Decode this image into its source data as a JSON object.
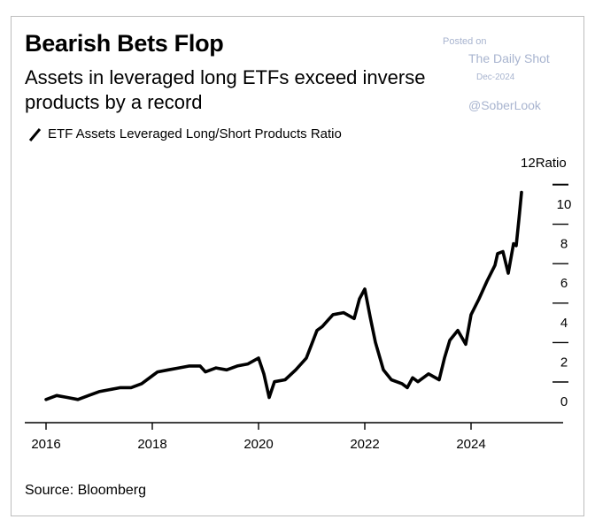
{
  "header": {
    "title": "Bearish Bets Flop",
    "subtitle": "Assets in leveraged long ETFs exceed inverse products by a record"
  },
  "watermark": {
    "line1": "Posted on",
    "line2": "The Daily Shot",
    "line3": "Dec-2024",
    "line4": "@SoberLook"
  },
  "footer": {
    "source": "Source: Bloomberg"
  },
  "colors": {
    "line": "#000000",
    "watermark": "#a8b4cf",
    "border": "#bdbdbd"
  },
  "chart_data": {
    "type": "line",
    "title": "Bearish Bets Flop",
    "legend": [
      "ETF Assets Leveraged Long/Short Products Ratio"
    ],
    "ylabel": "Ratio",
    "xlim": [
      2015.9,
      2025.6
    ],
    "ylim": [
      -1,
      12
    ],
    "x_ticks": [
      2016,
      2018,
      2020,
      2022,
      2024
    ],
    "y_ticks": [
      0,
      2,
      4,
      6,
      8,
      10
    ],
    "y_tick_top_label": "12",
    "grid": false,
    "series": [
      {
        "name": "ETF Assets Leveraged Long/Short Products Ratio",
        "x": [
          2016.0,
          2016.2,
          2016.4,
          2016.6,
          2016.8,
          2017.0,
          2017.2,
          2017.4,
          2017.6,
          2017.8,
          2018.0,
          2018.1,
          2018.3,
          2018.5,
          2018.7,
          2018.9,
          2019.0,
          2019.2,
          2019.4,
          2019.6,
          2019.8,
          2020.0,
          2020.1,
          2020.2,
          2020.3,
          2020.5,
          2020.7,
          2020.9,
          2021.0,
          2021.1,
          2021.2,
          2021.3,
          2021.4,
          2021.6,
          2021.8,
          2021.9,
          2022.0,
          2022.1,
          2022.2,
          2022.35,
          2022.5,
          2022.7,
          2022.8,
          2022.9,
          2023.0,
          2023.2,
          2023.4,
          2023.5,
          2023.6,
          2023.75,
          2023.9,
          2024.0,
          2024.15,
          2024.3,
          2024.45,
          2024.5,
          2024.6,
          2024.7,
          2024.8,
          2024.85,
          2024.9,
          2024.95
        ],
        "values": [
          0.1,
          0.3,
          0.2,
          0.1,
          0.3,
          0.5,
          0.6,
          0.7,
          0.7,
          0.9,
          1.3,
          1.5,
          1.6,
          1.7,
          1.8,
          1.8,
          1.5,
          1.7,
          1.6,
          1.8,
          1.9,
          2.2,
          1.4,
          0.2,
          1.0,
          1.1,
          1.6,
          2.2,
          2.9,
          3.6,
          3.8,
          4.1,
          4.4,
          4.5,
          4.2,
          5.2,
          5.7,
          4.3,
          3.0,
          1.6,
          1.1,
          0.9,
          0.7,
          1.2,
          1.0,
          1.4,
          1.1,
          2.2,
          3.1,
          3.6,
          2.9,
          4.4,
          5.2,
          6.1,
          6.9,
          7.5,
          7.6,
          6.5,
          8.0,
          7.9,
          9.2,
          10.6
        ]
      }
    ]
  }
}
